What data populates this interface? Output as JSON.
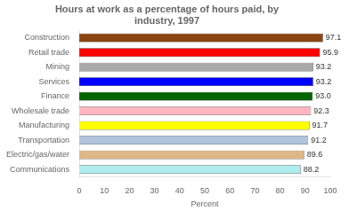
{
  "chart_data": {
    "type": "bar",
    "orientation": "horizontal",
    "title": "Hours at work as a percentage of hours paid, by\nindustry, 1997",
    "categories": [
      "Construction",
      "Retail trade",
      "Mining",
      "Services",
      "Finance",
      "Wholesale trade",
      "Manufacturing",
      "Transportation",
      "Electric/gas/water",
      "Communications"
    ],
    "values": [
      97.1,
      95.9,
      93.2,
      93.2,
      93.0,
      92.3,
      91.7,
      91.2,
      89.6,
      88.2
    ],
    "value_labels": [
      "97.1",
      "95.9",
      "93.2",
      "93.2",
      "93.0",
      "92.3",
      "91.7",
      "91.2",
      "89.6",
      "88.2"
    ],
    "colors": [
      "#8B4513",
      "#FF0000",
      "#A9A9A9",
      "#0000FF",
      "#006400",
      "#FFB6C1",
      "#FFFF00",
      "#B0C4DE",
      "#DEB887",
      "#AFEEEE"
    ],
    "xlabel": "Percent",
    "xlim": [
      0,
      100
    ],
    "xticks": [
      0,
      10,
      20,
      30,
      40,
      50,
      60,
      70,
      80,
      90,
      100
    ],
    "grid": false,
    "data_labels": true
  }
}
